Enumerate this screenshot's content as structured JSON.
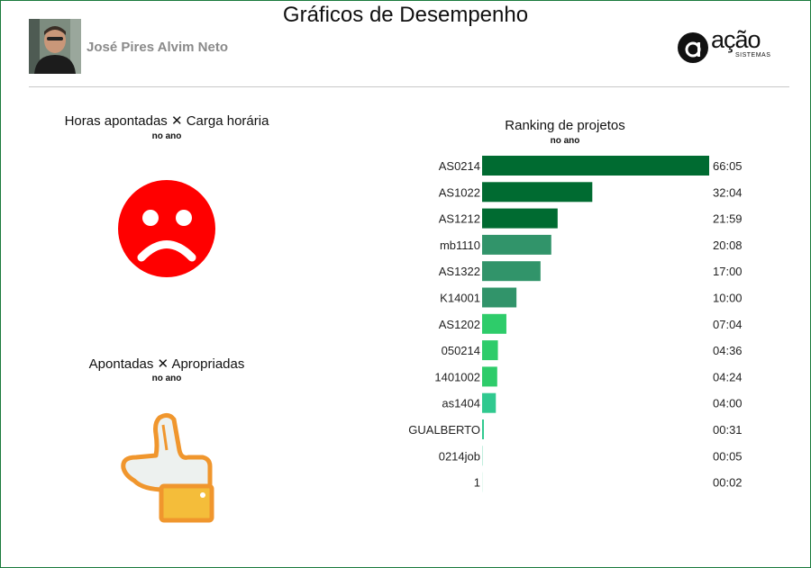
{
  "header": {
    "title": "Gráficos de Desempenho",
    "user_name": "José Pires Alvim Neto",
    "logo": {
      "word": "ação",
      "sub": "SISTEMAS"
    }
  },
  "panels": {
    "hours_vs_workload": {
      "title": "Horas apontadas ✕ Carga horária",
      "subtitle": "no ano",
      "status_icon": "sad-face-icon",
      "status_color": "#ff0000"
    },
    "logged_vs_appropriated": {
      "title": "Apontadas ✕ Apropriadas",
      "subtitle": "no ano",
      "status_icon": "thumbs-up-icon",
      "status_color": "#f0962d"
    }
  },
  "ranking": {
    "title": "Ranking de projetos",
    "subtitle": "no ano"
  },
  "chart_data": {
    "type": "bar",
    "orientation": "horizontal",
    "title": "Ranking de projetos",
    "subtitle": "no ano",
    "categories": [
      "AS0214",
      "AS1022",
      "AS1212",
      "mb1110",
      "AS1322",
      "K14001",
      "AS1202",
      "050214",
      "1401002",
      "as1404",
      "GUALBERTO",
      "0214job",
      "1"
    ],
    "values": [
      66.08,
      32.07,
      21.98,
      20.13,
      17.0,
      10.0,
      7.07,
      4.6,
      4.4,
      4.0,
      0.52,
      0.08,
      0.03
    ],
    "labels": [
      "66:05",
      "32:04",
      "21:59",
      "20:08",
      "17:00",
      "10:00",
      "07:04",
      "04:36",
      "04:24",
      "04:00",
      "00:31",
      "00:05",
      "00:02"
    ],
    "colors": [
      "#006b31",
      "#006b31",
      "#006b31",
      "#31946a",
      "#31946a",
      "#31946a",
      "#2ecc6a",
      "#2ecc6a",
      "#2ecc6a",
      "#30c98f",
      "#30c98f",
      "#30c98f",
      "#30c98f"
    ],
    "xlim": [
      0,
      66.08
    ],
    "grid": false,
    "legend": "none"
  }
}
